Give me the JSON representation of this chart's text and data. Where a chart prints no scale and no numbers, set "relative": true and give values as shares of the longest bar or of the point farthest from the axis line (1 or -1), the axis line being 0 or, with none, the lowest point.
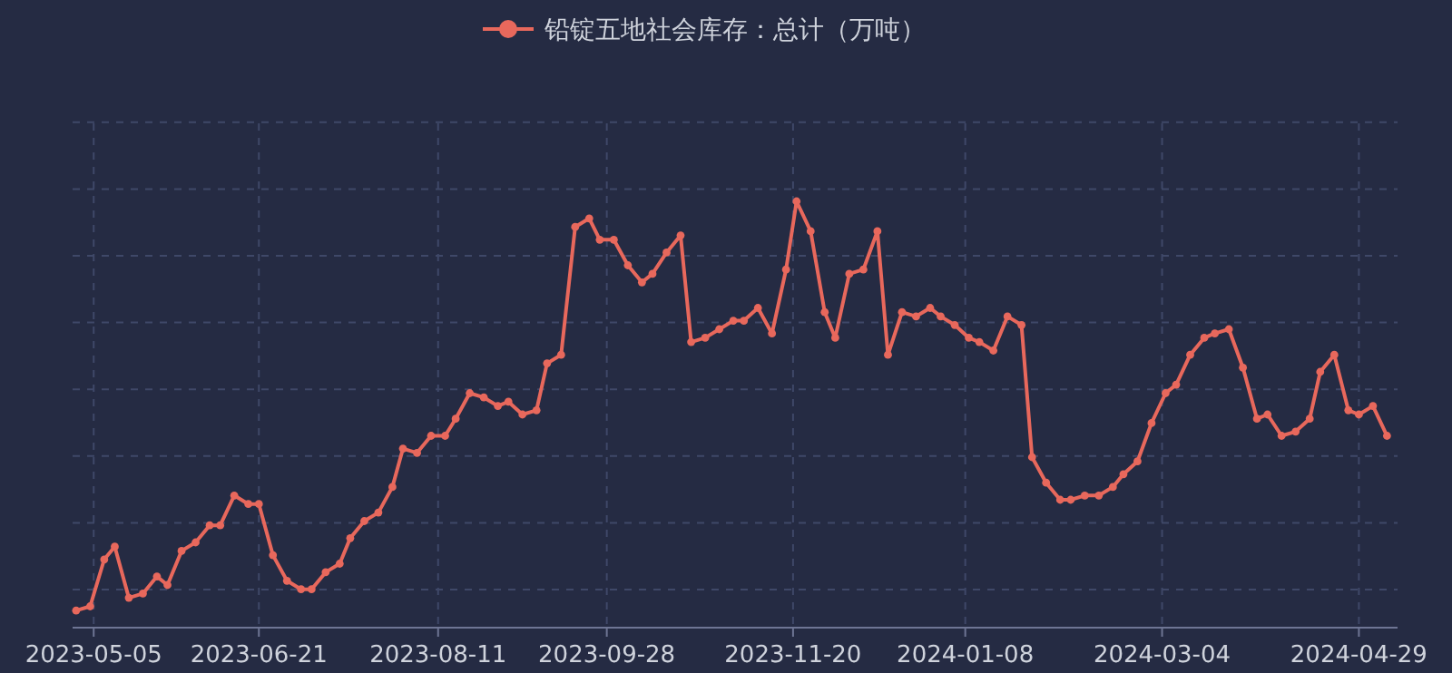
{
  "chart_data": {
    "type": "line",
    "relative": true,
    "legend": "top",
    "grid": true,
    "marker": "circle",
    "line_style": "solid",
    "xlim": [
      "2023-04-29",
      "2024-05-10"
    ],
    "xticks": [
      "2023-05-05",
      "2023-06-21",
      "2023-08-11",
      "2023-09-28",
      "2023-11-20",
      "2024-01-08",
      "2024-03-04",
      "2024-04-29"
    ],
    "x": [
      "2023-04-30",
      "2023-05-04",
      "2023-05-08",
      "2023-05-11",
      "2023-05-15",
      "2023-05-19",
      "2023-05-23",
      "2023-05-26",
      "2023-05-30",
      "2023-06-03",
      "2023-06-07",
      "2023-06-10",
      "2023-06-14",
      "2023-06-18",
      "2023-06-21",
      "2023-06-25",
      "2023-06-29",
      "2023-07-03",
      "2023-07-06",
      "2023-07-10",
      "2023-07-14",
      "2023-07-17",
      "2023-07-21",
      "2023-07-25",
      "2023-07-29",
      "2023-08-01",
      "2023-08-05",
      "2023-08-09",
      "2023-08-13",
      "2023-08-16",
      "2023-08-20",
      "2023-08-24",
      "2023-08-28",
      "2023-08-31",
      "2023-09-04",
      "2023-09-08",
      "2023-09-11",
      "2023-09-15",
      "2023-09-19",
      "2023-09-23",
      "2023-09-26",
      "2023-09-30",
      "2023-10-04",
      "2023-10-08",
      "2023-10-11",
      "2023-10-15",
      "2023-10-19",
      "2023-10-22",
      "2023-10-26",
      "2023-10-30",
      "2023-11-03",
      "2023-11-06",
      "2023-11-10",
      "2023-11-14",
      "2023-11-18",
      "2023-11-21",
      "2023-11-25",
      "2023-11-29",
      "2023-12-02",
      "2023-12-06",
      "2023-12-10",
      "2023-12-14",
      "2023-12-17",
      "2023-12-21",
      "2023-12-25",
      "2023-12-29",
      "2024-01-01",
      "2024-01-05",
      "2024-01-09",
      "2024-01-12",
      "2024-01-16",
      "2024-01-20",
      "2024-01-24",
      "2024-01-27",
      "2024-01-31",
      "2024-02-04",
      "2024-02-07",
      "2024-02-11",
      "2024-02-15",
      "2024-02-19",
      "2024-02-22",
      "2024-02-26",
      "2024-03-01",
      "2024-03-05",
      "2024-03-08",
      "2024-03-12",
      "2024-03-16",
      "2024-03-19",
      "2024-03-23",
      "2024-03-27",
      "2024-03-31",
      "2024-04-03",
      "2024-04-07",
      "2024-04-11",
      "2024-04-15",
      "2024-04-18",
      "2024-04-22",
      "2024-04-26",
      "2024-04-29",
      "2024-05-03",
      "2024-05-07"
    ],
    "series": [
      {
        "name": "铅锭五地社会库存：总计（万吨）",
        "color": "#e8685c",
        "values": [
          0.04,
          0.05,
          0.16,
          0.19,
          0.07,
          0.08,
          0.12,
          0.1,
          0.18,
          0.2,
          0.24,
          0.24,
          0.31,
          0.29,
          0.29,
          0.17,
          0.11,
          0.09,
          0.09,
          0.13,
          0.15,
          0.21,
          0.25,
          0.27,
          0.33,
          0.42,
          0.41,
          0.45,
          0.45,
          0.49,
          0.55,
          0.54,
          0.52,
          0.53,
          0.5,
          0.51,
          0.62,
          0.64,
          0.94,
          0.96,
          0.91,
          0.91,
          0.85,
          0.81,
          0.83,
          0.88,
          0.92,
          0.67,
          0.68,
          0.7,
          0.72,
          0.72,
          0.75,
          0.69,
          0.84,
          1,
          0.93,
          0.74,
          0.68,
          0.83,
          0.84,
          0.93,
          0.64,
          0.74,
          0.73,
          0.75,
          0.73,
          0.71,
          0.68,
          0.67,
          0.65,
          0.73,
          0.71,
          0.4,
          0.34,
          0.3,
          0.3,
          0.31,
          0.31,
          0.33,
          0.36,
          0.39,
          0.48,
          0.55,
          0.57,
          0.64,
          0.68,
          0.69,
          0.7,
          0.61,
          0.49,
          0.5,
          0.45,
          0.46,
          0.49,
          0.6,
          0.64,
          0.51,
          0.5,
          0.52,
          0.45
        ]
      }
    ]
  }
}
